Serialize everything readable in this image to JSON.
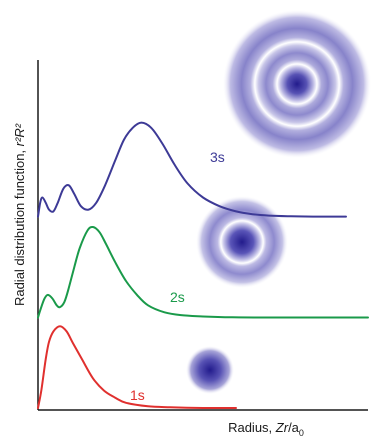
{
  "chart_data": {
    "type": "line",
    "title": "",
    "xlabel": "Radius, Zr/a₀",
    "ylabel": "Radial distribution function, r²R²",
    "xlabel_parts": {
      "prefix": "Radius, ",
      "italic": "Zr",
      "suffix": "/a",
      "subscript": "0"
    },
    "ylabel_parts": {
      "prefix": "Radial distribution function, ",
      "italic": "r²R²"
    },
    "xlim": [
      0,
      30
    ],
    "ylim": [
      0,
      1
    ],
    "grid": false,
    "legend": "labels next to curves",
    "series": [
      {
        "name": "1s",
        "color": "#e0302e",
        "offset": 0.0,
        "x": [
          0,
          0.3,
          0.7,
          1.0,
          1.4,
          2.0,
          2.6,
          3.2,
          4.0,
          5.0,
          6.0,
          7.0,
          8.0,
          10.0,
          12.0,
          15.0,
          18.0
        ],
        "values": [
          0,
          0.05,
          0.14,
          0.19,
          0.22,
          0.235,
          0.22,
          0.185,
          0.14,
          0.085,
          0.05,
          0.03,
          0.015,
          0.005,
          0.002,
          0,
          0
        ]
      },
      {
        "name": "2s",
        "color": "#1a9a4a",
        "offset": 0.26,
        "x": [
          0,
          0.3,
          0.6,
          0.9,
          1.3,
          1.7,
          2.0,
          2.4,
          2.8,
          3.3,
          3.8,
          4.5,
          5.0,
          5.6,
          6.2,
          7.0,
          8.0,
          9.0,
          10.0,
          11.5,
          13.0,
          15.0,
          17.0,
          20.0,
          24.0,
          30.0
        ],
        "values": [
          0,
          0.03,
          0.055,
          0.065,
          0.055,
          0.035,
          0.03,
          0.045,
          0.085,
          0.145,
          0.2,
          0.25,
          0.26,
          0.245,
          0.21,
          0.16,
          0.105,
          0.065,
          0.035,
          0.015,
          0.007,
          0.003,
          0.001,
          0,
          0,
          0
        ]
      },
      {
        "name": "3s",
        "color": "#3d3a96",
        "offset": 0.55,
        "x": [
          0,
          0.2,
          0.4,
          0.7,
          1.0,
          1.4,
          1.8,
          2.3,
          2.8,
          3.3,
          3.9,
          4.6,
          5.3,
          6.1,
          7.0,
          7.8,
          8.6,
          9.4,
          10.3,
          11.3,
          12.4,
          13.6,
          15.0,
          16.5,
          18.0,
          19.5,
          21.0,
          23.0,
          25.0,
          28.0
        ],
        "values": [
          0,
          0.04,
          0.055,
          0.04,
          0.02,
          0.015,
          0.04,
          0.08,
          0.09,
          0.065,
          0.03,
          0.02,
          0.04,
          0.09,
          0.16,
          0.22,
          0.255,
          0.27,
          0.255,
          0.21,
          0.15,
          0.095,
          0.055,
          0.03,
          0.015,
          0.007,
          0.003,
          0.001,
          0,
          0
        ]
      }
    ]
  },
  "orbitals": [
    {
      "name": "1s",
      "color_center": "#1f1a85",
      "color_edge": "#ffffff",
      "nodes": 0
    },
    {
      "name": "2s",
      "color_center": "#1f1a85",
      "color_edge": "#ffffff",
      "nodes": 1
    },
    {
      "name": "3s",
      "color_center": "#1f1a85",
      "color_edge": "#ffffff",
      "nodes": 2
    }
  ]
}
